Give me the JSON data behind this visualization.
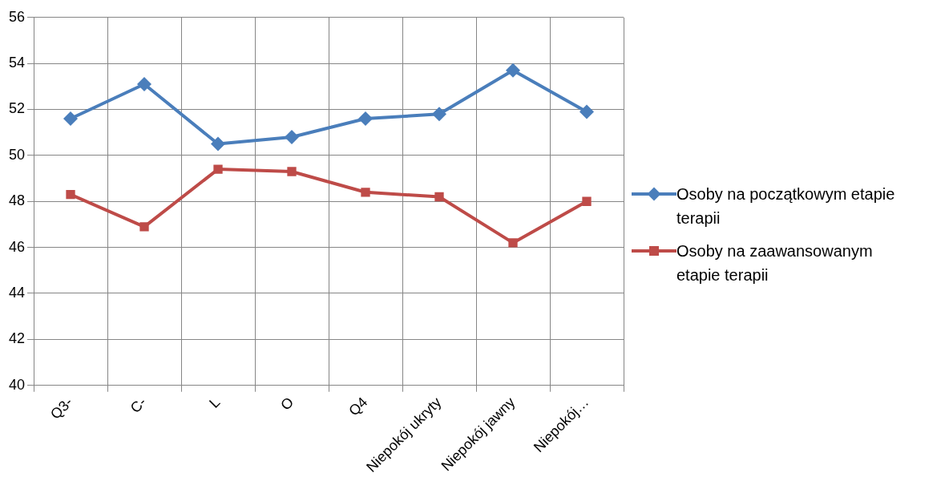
{
  "chart_data": {
    "type": "line",
    "categories": [
      "Q3-",
      "C-",
      "L",
      "O",
      "Q4",
      "Niepokój ukryty",
      "Niepokój jawny",
      "Niepokój…"
    ],
    "series": [
      {
        "name": "Osoby na początkowym etapie terapii",
        "color": "#4a7ebb",
        "marker": "diamond",
        "values": [
          51.6,
          53.1,
          50.5,
          50.8,
          51.6,
          51.8,
          53.7,
          51.9
        ]
      },
      {
        "name": "Osoby na zaawansowanym etapie terapii",
        "color": "#be4b48",
        "marker": "square",
        "values": [
          48.3,
          46.9,
          49.4,
          49.3,
          48.4,
          48.2,
          46.2,
          48.0
        ]
      }
    ],
    "ylim": [
      40,
      56
    ],
    "yticks": [
      40,
      42,
      44,
      46,
      48,
      50,
      52,
      54,
      56
    ],
    "grid": true,
    "legend": "right",
    "line_style": "solid"
  }
}
